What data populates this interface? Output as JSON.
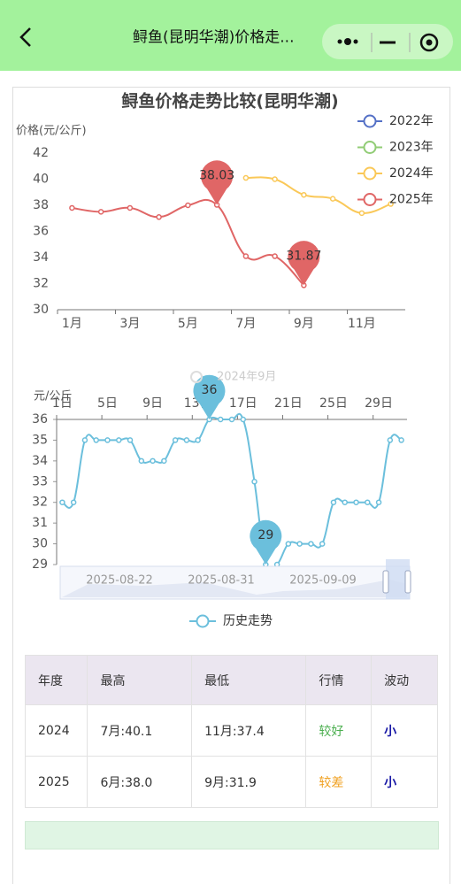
{
  "header": {
    "title": "鲟鱼(昆明华潮)价格走..."
  },
  "chart_data": [
    {
      "type": "line",
      "title": "鲟鱼价格走势比较(昆明华潮)",
      "y_label": "价格(元/公斤)",
      "categories": [
        "1月",
        null,
        "3月",
        null,
        "5月",
        null,
        "7月",
        null,
        "9月",
        null,
        "11月",
        null
      ],
      "series": [
        {
          "name": "2022年",
          "color": "#5470c6",
          "values": [
            null,
            null,
            null,
            null,
            null,
            null,
            null,
            null,
            null,
            null,
            null,
            null
          ]
        },
        {
          "name": "2023年",
          "color": "#91cc75",
          "values": [
            null,
            null,
            null,
            null,
            null,
            null,
            null,
            null,
            null,
            null,
            null,
            null
          ]
        },
        {
          "name": "2024年",
          "color": "#fac858",
          "values": [
            null,
            null,
            null,
            null,
            null,
            null,
            40.1,
            40.0,
            38.8,
            38.5,
            37.4,
            38.1
          ]
        },
        {
          "name": "2025年",
          "color": "#e06666",
          "values": [
            37.8,
            37.5,
            37.8,
            37.1,
            38.0,
            38.03,
            34.1,
            34.1,
            31.87,
            null,
            null,
            null
          ]
        }
      ],
      "pins": [
        {
          "series": 3,
          "index": 5
        },
        {
          "series": 3,
          "index": 8
        }
      ],
      "ylim": [
        30,
        42
      ],
      "yticks": [
        30,
        32,
        34,
        36,
        38,
        40,
        42
      ],
      "legend": "top-right"
    },
    {
      "type": "line",
      "y_label": "元/公斤",
      "faded_label": "2024年9月",
      "categories": [
        "1日",
        null,
        null,
        null,
        "5日",
        null,
        null,
        null,
        "9日",
        null,
        null,
        null,
        "13日",
        null,
        null,
        null,
        "17日",
        null,
        null,
        null,
        "21日",
        null,
        null,
        null,
        "25日",
        null,
        null,
        null,
        "29日",
        null,
        null
      ],
      "series": [
        {
          "name": "历史走势",
          "color": "#6bbfdc",
          "values": [
            32,
            32,
            35,
            35,
            35,
            35,
            35,
            34,
            34,
            34,
            35,
            35,
            35,
            36,
            36,
            36,
            36,
            33,
            29,
            29,
            30,
            30,
            30,
            30,
            32,
            32,
            32,
            32,
            32,
            35,
            35
          ]
        }
      ],
      "pins": [
        {
          "series": 0,
          "index": 13
        },
        {
          "series": 0,
          "index": 18
        }
      ],
      "ylim": [
        29,
        36
      ],
      "yticks": [
        29,
        30,
        31,
        32,
        33,
        34,
        35,
        36
      ],
      "zoom_labels": [
        "2025-08-22",
        "2025-08-31",
        "2025-09-09"
      ],
      "legend": "bottom"
    }
  ],
  "table": {
    "headers": [
      "年度",
      "最高",
      "最低",
      "行情",
      "波动"
    ],
    "rows": [
      [
        "2024",
        "7月:40.1",
        "11月:37.4",
        "较好",
        "小"
      ],
      [
        "2025",
        "6月:38.0",
        "9月:31.9",
        "较差",
        "小"
      ]
    ]
  }
}
